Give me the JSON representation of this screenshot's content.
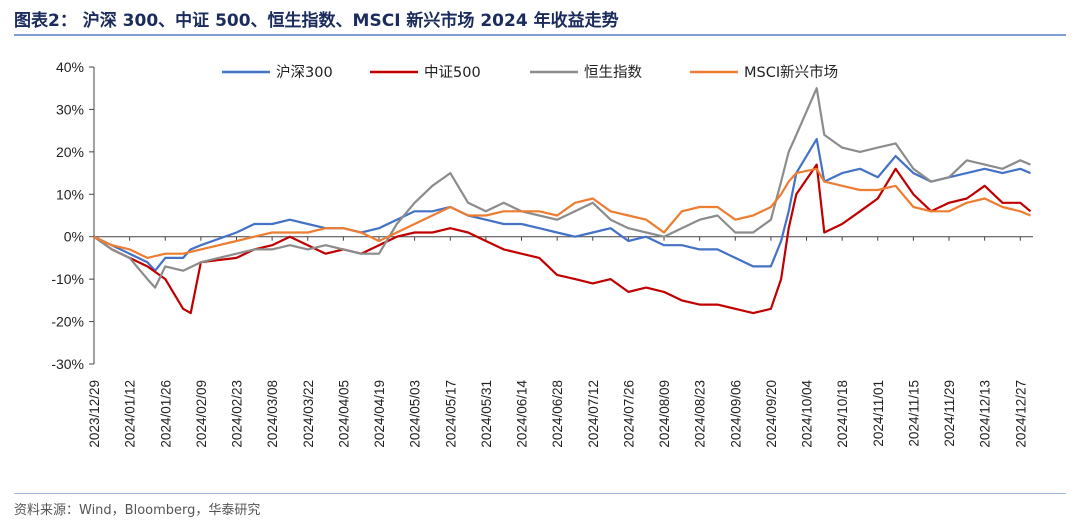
{
  "header": {
    "title": "图表2：  沪深 300、中证 500、恒生指数、MSCI 新兴市场 2024 年收益走势"
  },
  "footer": {
    "source": "资料来源：Wind，Bloomberg，华泰研究"
  },
  "chart_data": {
    "type": "line",
    "ylim": [
      -30,
      40
    ],
    "yticks": [
      "40%",
      "30%",
      "20%",
      "10%",
      "0%",
      "-10%",
      "-20%",
      "-30%"
    ],
    "ytick_values": [
      40,
      30,
      20,
      10,
      0,
      -10,
      -20,
      -30
    ],
    "xticks": [
      "2023/12/29",
      "2024/01/12",
      "2024/01/26",
      "2024/02/09",
      "2024/02/23",
      "2024/03/08",
      "2024/03/22",
      "2024/04/05",
      "2024/04/19",
      "2024/05/03",
      "2024/05/17",
      "2024/05/31",
      "2024/06/14",
      "2024/06/28",
      "2024/07/12",
      "2024/07/26",
      "2024/08/09",
      "2024/08/23",
      "2024/09/06",
      "2024/09/20",
      "2024/10/04",
      "2024/10/18",
      "2024/11/01",
      "2024/11/15",
      "2024/11/29",
      "2024/12/13",
      "2024/12/27"
    ],
    "legend_position": "top",
    "grid": false,
    "series": [
      {
        "name": "沪深300",
        "color": "#4472c4",
        "points": [
          [
            "2023/12/29",
            0
          ],
          [
            "2024/01/05",
            -2
          ],
          [
            "2024/01/12",
            -4
          ],
          [
            "2024/01/19",
            -6
          ],
          [
            "2024/01/22",
            -8
          ],
          [
            "2024/01/26",
            -5
          ],
          [
            "2024/02/02",
            -5
          ],
          [
            "2024/02/05",
            -3
          ],
          [
            "2024/02/09",
            -2
          ],
          [
            "2024/02/23",
            1
          ],
          [
            "2024/03/01",
            3
          ],
          [
            "2024/03/08",
            3
          ],
          [
            "2024/03/15",
            4
          ],
          [
            "2024/03/22",
            3
          ],
          [
            "2024/03/29",
            2
          ],
          [
            "2024/04/05",
            2
          ],
          [
            "2024/04/12",
            1
          ],
          [
            "2024/04/19",
            2
          ],
          [
            "2024/04/26",
            4
          ],
          [
            "2024/05/03",
            6
          ],
          [
            "2024/05/10",
            6
          ],
          [
            "2024/05/17",
            7
          ],
          [
            "2024/05/24",
            5
          ],
          [
            "2024/05/31",
            4
          ],
          [
            "2024/06/07",
            3
          ],
          [
            "2024/06/14",
            3
          ],
          [
            "2024/06/21",
            2
          ],
          [
            "2024/06/28",
            1
          ],
          [
            "2024/07/05",
            0
          ],
          [
            "2024/07/12",
            1
          ],
          [
            "2024/07/19",
            2
          ],
          [
            "2024/07/26",
            -1
          ],
          [
            "2024/08/02",
            0
          ],
          [
            "2024/08/09",
            -2
          ],
          [
            "2024/08/16",
            -2
          ],
          [
            "2024/08/23",
            -3
          ],
          [
            "2024/08/30",
            -3
          ],
          [
            "2024/09/06",
            -5
          ],
          [
            "2024/09/13",
            -7
          ],
          [
            "2024/09/20",
            -7
          ],
          [
            "2024/09/24",
            -1
          ],
          [
            "2024/09/27",
            6
          ],
          [
            "2024/09/30",
            15
          ],
          [
            "2024/10/08",
            23
          ],
          [
            "2024/10/11",
            13
          ],
          [
            "2024/10/18",
            15
          ],
          [
            "2024/10/25",
            16
          ],
          [
            "2024/11/01",
            14
          ],
          [
            "2024/11/08",
            19
          ],
          [
            "2024/11/15",
            15
          ],
          [
            "2024/11/22",
            13
          ],
          [
            "2024/11/29",
            14
          ],
          [
            "2024/12/06",
            15
          ],
          [
            "2024/12/13",
            16
          ],
          [
            "2024/12/20",
            15
          ],
          [
            "2024/12/27",
            16
          ],
          [
            "2024/12/31",
            15
          ]
        ]
      },
      {
        "name": "中证500",
        "color": "#c00000",
        "points": [
          [
            "2023/12/29",
            0
          ],
          [
            "2024/01/05",
            -3
          ],
          [
            "2024/01/12",
            -5
          ],
          [
            "2024/01/19",
            -7
          ],
          [
            "2024/01/26",
            -10
          ],
          [
            "2024/02/02",
            -17
          ],
          [
            "2024/02/05",
            -18
          ],
          [
            "2024/02/09",
            -6
          ],
          [
            "2024/02/23",
            -5
          ],
          [
            "2024/03/01",
            -3
          ],
          [
            "2024/03/08",
            -2
          ],
          [
            "2024/03/15",
            0
          ],
          [
            "2024/03/22",
            -2
          ],
          [
            "2024/03/29",
            -4
          ],
          [
            "2024/04/05",
            -3
          ],
          [
            "2024/04/12",
            -4
          ],
          [
            "2024/04/19",
            -2
          ],
          [
            "2024/04/26",
            0
          ],
          [
            "2024/05/03",
            1
          ],
          [
            "2024/05/10",
            1
          ],
          [
            "2024/05/17",
            2
          ],
          [
            "2024/05/24",
            1
          ],
          [
            "2024/05/31",
            -1
          ],
          [
            "2024/06/07",
            -3
          ],
          [
            "2024/06/14",
            -4
          ],
          [
            "2024/06/21",
            -5
          ],
          [
            "2024/06/28",
            -9
          ],
          [
            "2024/07/05",
            -10
          ],
          [
            "2024/07/12",
            -11
          ],
          [
            "2024/07/19",
            -10
          ],
          [
            "2024/07/26",
            -13
          ],
          [
            "2024/08/02",
            -12
          ],
          [
            "2024/08/09",
            -13
          ],
          [
            "2024/08/16",
            -15
          ],
          [
            "2024/08/23",
            -16
          ],
          [
            "2024/08/30",
            -16
          ],
          [
            "2024/09/06",
            -17
          ],
          [
            "2024/09/13",
            -18
          ],
          [
            "2024/09/20",
            -17
          ],
          [
            "2024/09/24",
            -10
          ],
          [
            "2024/09/27",
            2
          ],
          [
            "2024/09/30",
            10
          ],
          [
            "2024/10/08",
            17
          ],
          [
            "2024/10/11",
            1
          ],
          [
            "2024/10/18",
            3
          ],
          [
            "2024/10/25",
            6
          ],
          [
            "2024/11/01",
            9
          ],
          [
            "2024/11/08",
            16
          ],
          [
            "2024/11/15",
            10
          ],
          [
            "2024/11/22",
            6
          ],
          [
            "2024/11/29",
            8
          ],
          [
            "2024/12/06",
            9
          ],
          [
            "2024/12/13",
            12
          ],
          [
            "2024/12/20",
            8
          ],
          [
            "2024/12/27",
            8
          ],
          [
            "2024/12/31",
            6
          ]
        ]
      },
      {
        "name": "恒生指数",
        "color": "#8c8c8c",
        "points": [
          [
            "2023/12/29",
            0
          ],
          [
            "2024/01/05",
            -3
          ],
          [
            "2024/01/12",
            -5
          ],
          [
            "2024/01/19",
            -10
          ],
          [
            "2024/01/22",
            -12
          ],
          [
            "2024/01/26",
            -7
          ],
          [
            "2024/02/02",
            -8
          ],
          [
            "2024/02/09",
            -6
          ],
          [
            "2024/02/23",
            -4
          ],
          [
            "2024/03/01",
            -3
          ],
          [
            "2024/03/08",
            -3
          ],
          [
            "2024/03/15",
            -2
          ],
          [
            "2024/03/22",
            -3
          ],
          [
            "2024/03/29",
            -2
          ],
          [
            "2024/04/05",
            -3
          ],
          [
            "2024/04/12",
            -4
          ],
          [
            "2024/04/19",
            -4
          ],
          [
            "2024/04/26",
            3
          ],
          [
            "2024/05/03",
            8
          ],
          [
            "2024/05/10",
            12
          ],
          [
            "2024/05/17",
            15
          ],
          [
            "2024/05/24",
            8
          ],
          [
            "2024/05/31",
            6
          ],
          [
            "2024/06/07",
            8
          ],
          [
            "2024/06/14",
            6
          ],
          [
            "2024/06/21",
            5
          ],
          [
            "2024/06/28",
            4
          ],
          [
            "2024/07/05",
            6
          ],
          [
            "2024/07/12",
            8
          ],
          [
            "2024/07/19",
            4
          ],
          [
            "2024/07/26",
            2
          ],
          [
            "2024/08/02",
            1
          ],
          [
            "2024/08/09",
            0
          ],
          [
            "2024/08/16",
            2
          ],
          [
            "2024/08/23",
            4
          ],
          [
            "2024/08/30",
            5
          ],
          [
            "2024/09/06",
            1
          ],
          [
            "2024/09/13",
            1
          ],
          [
            "2024/09/20",
            4
          ],
          [
            "2024/09/24",
            13
          ],
          [
            "2024/09/27",
            20
          ],
          [
            "2024/09/30",
            24
          ],
          [
            "2024/10/08",
            35
          ],
          [
            "2024/10/11",
            24
          ],
          [
            "2024/10/18",
            21
          ],
          [
            "2024/10/25",
            20
          ],
          [
            "2024/11/01",
            21
          ],
          [
            "2024/11/08",
            22
          ],
          [
            "2024/11/15",
            16
          ],
          [
            "2024/11/22",
            13
          ],
          [
            "2024/11/29",
            14
          ],
          [
            "2024/12/06",
            18
          ],
          [
            "2024/12/13",
            17
          ],
          [
            "2024/12/20",
            16
          ],
          [
            "2024/12/27",
            18
          ],
          [
            "2024/12/31",
            17
          ]
        ]
      },
      {
        "name": "MSCI新兴市场",
        "color": "#ed7d31",
        "points": [
          [
            "2023/12/29",
            0
          ],
          [
            "2024/01/05",
            -2
          ],
          [
            "2024/01/12",
            -3
          ],
          [
            "2024/01/19",
            -5
          ],
          [
            "2024/01/26",
            -4
          ],
          [
            "2024/02/02",
            -4
          ],
          [
            "2024/02/09",
            -3
          ],
          [
            "2024/02/23",
            -1
          ],
          [
            "2024/03/01",
            0
          ],
          [
            "2024/03/08",
            1
          ],
          [
            "2024/03/15",
            1
          ],
          [
            "2024/03/22",
            1
          ],
          [
            "2024/03/29",
            2
          ],
          [
            "2024/04/05",
            2
          ],
          [
            "2024/04/12",
            1
          ],
          [
            "2024/04/19",
            -1
          ],
          [
            "2024/04/26",
            1
          ],
          [
            "2024/05/03",
            3
          ],
          [
            "2024/05/10",
            5
          ],
          [
            "2024/05/17",
            7
          ],
          [
            "2024/05/24",
            5
          ],
          [
            "2024/05/31",
            5
          ],
          [
            "2024/06/07",
            6
          ],
          [
            "2024/06/14",
            6
          ],
          [
            "2024/06/21",
            6
          ],
          [
            "2024/06/28",
            5
          ],
          [
            "2024/07/05",
            8
          ],
          [
            "2024/07/12",
            9
          ],
          [
            "2024/07/19",
            6
          ],
          [
            "2024/07/26",
            5
          ],
          [
            "2024/08/02",
            4
          ],
          [
            "2024/08/09",
            1
          ],
          [
            "2024/08/16",
            6
          ],
          [
            "2024/08/23",
            7
          ],
          [
            "2024/08/30",
            7
          ],
          [
            "2024/09/06",
            4
          ],
          [
            "2024/09/13",
            5
          ],
          [
            "2024/09/20",
            7
          ],
          [
            "2024/09/24",
            10
          ],
          [
            "2024/09/27",
            13
          ],
          [
            "2024/09/30",
            15
          ],
          [
            "2024/10/08",
            16
          ],
          [
            "2024/10/11",
            13
          ],
          [
            "2024/10/18",
            12
          ],
          [
            "2024/10/25",
            11
          ],
          [
            "2024/11/01",
            11
          ],
          [
            "2024/11/08",
            12
          ],
          [
            "2024/11/15",
            7
          ],
          [
            "2024/11/22",
            6
          ],
          [
            "2024/11/29",
            6
          ],
          [
            "2024/12/06",
            8
          ],
          [
            "2024/12/13",
            9
          ],
          [
            "2024/12/20",
            7
          ],
          [
            "2024/12/27",
            6
          ],
          [
            "2024/12/31",
            5
          ]
        ]
      }
    ]
  }
}
